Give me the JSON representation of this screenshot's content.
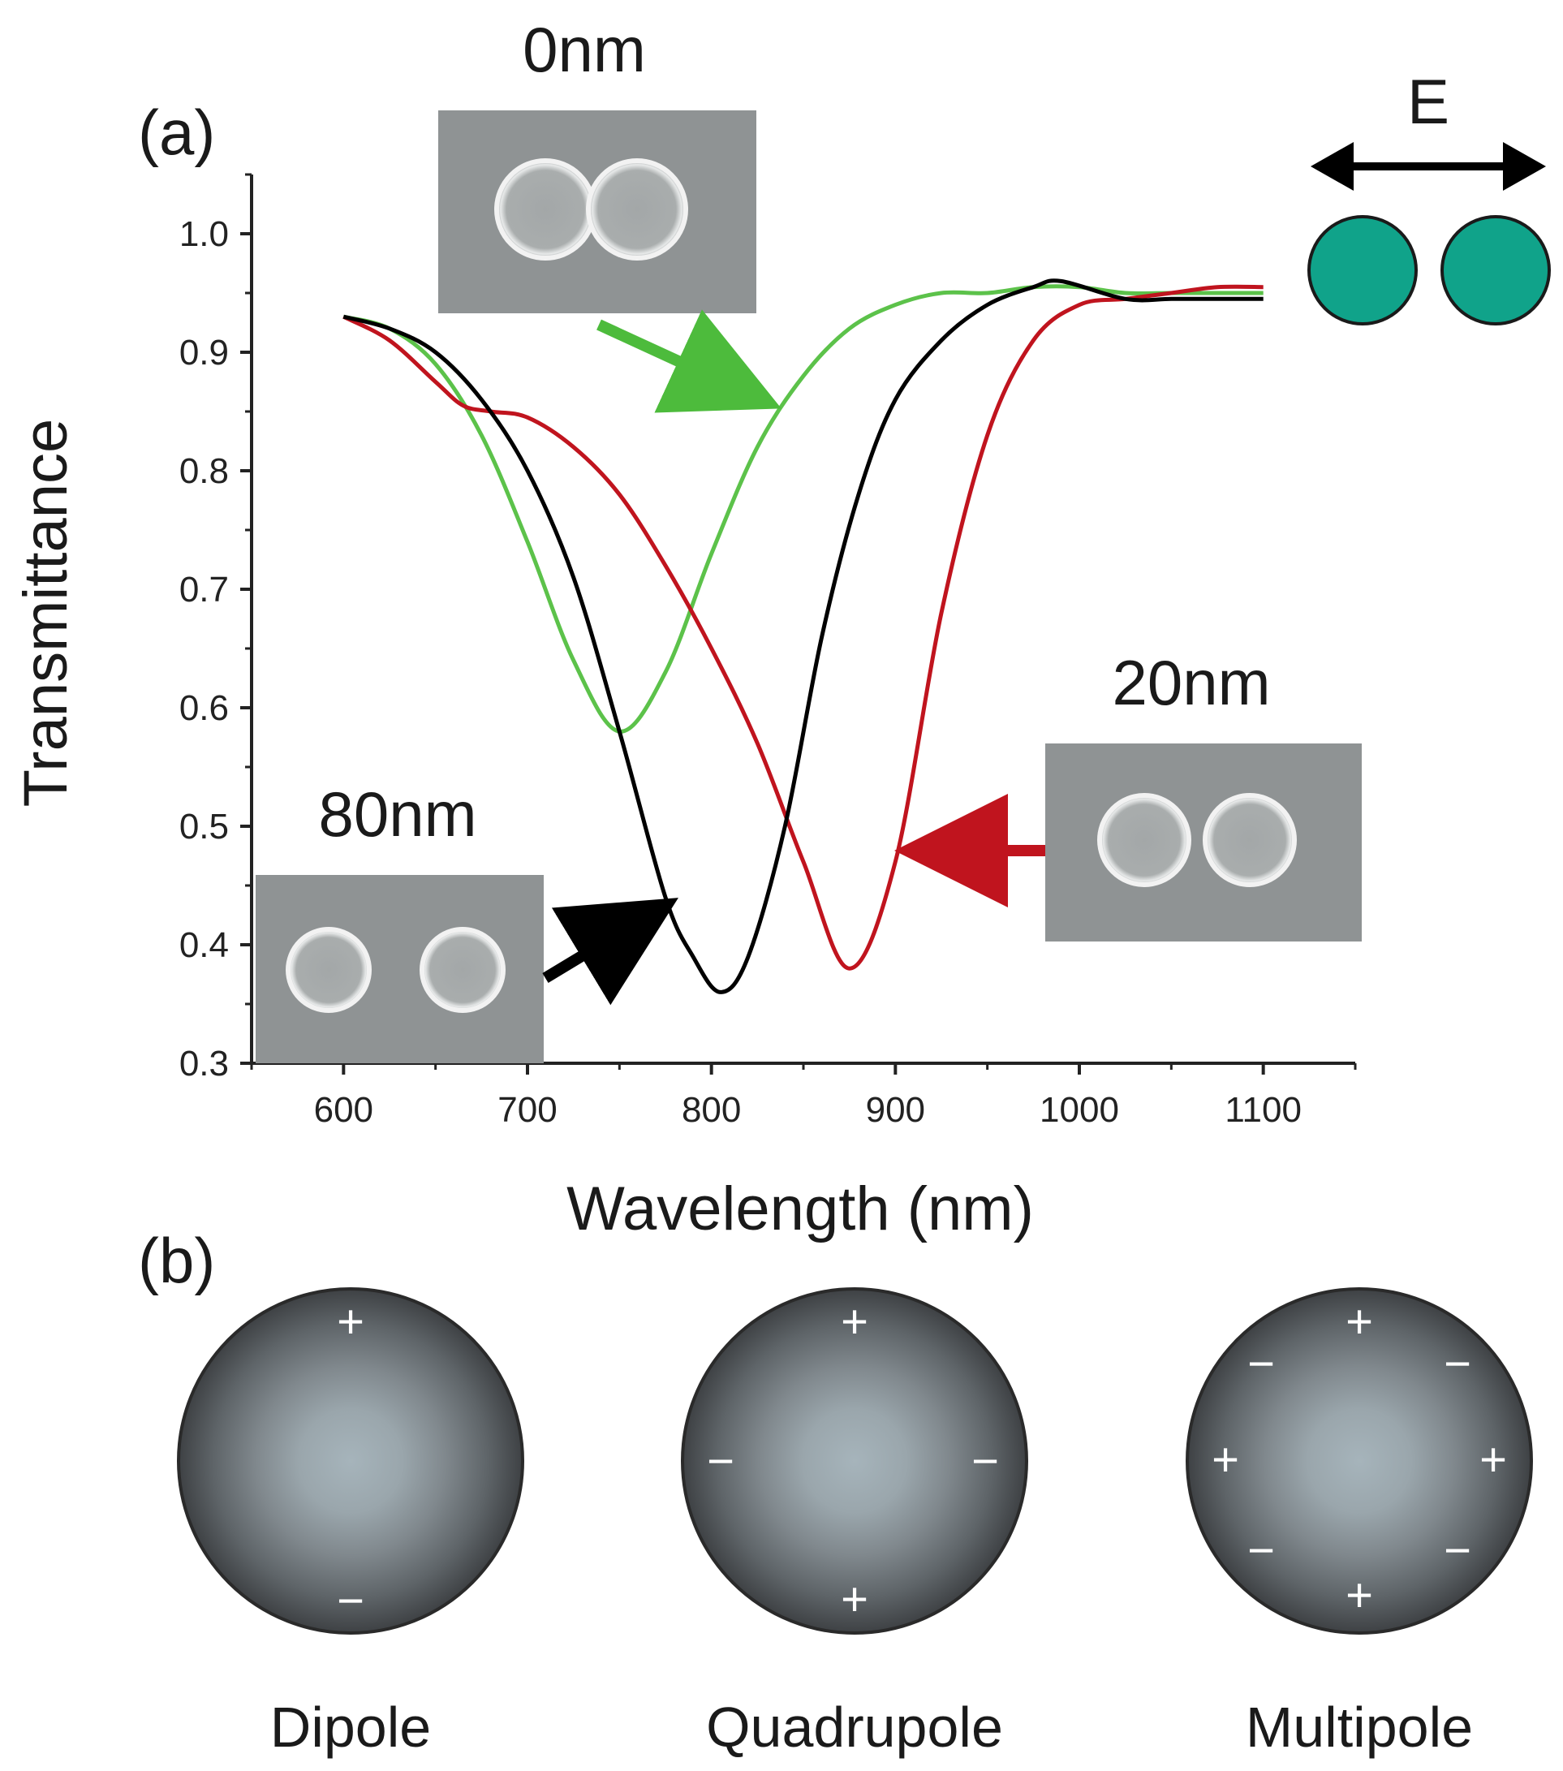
{
  "panel_a": {
    "label": "(a)"
  },
  "panel_b": {
    "label": "(b)"
  },
  "efield": {
    "label": "E",
    "particle_color": "#10a38a"
  },
  "insets": [
    {
      "id": "gap0",
      "label": "0nm",
      "arrow_color": "#4dbb3c"
    },
    {
      "id": "gap20",
      "label": "20nm",
      "arrow_color": "#c0141e"
    },
    {
      "id": "gap80",
      "label": "80nm",
      "arrow_color": "#000000"
    }
  ],
  "modes": [
    {
      "name": "Dipole",
      "charges": [
        "+",
        "−"
      ]
    },
    {
      "name": "Quadrupole",
      "charges": [
        "+",
        "−",
        "−",
        "+"
      ]
    },
    {
      "name": "Multipole",
      "charges": [
        "+",
        "−",
        "−",
        "+",
        "+",
        "−",
        "−",
        "+"
      ]
    }
  ],
  "chart_data": {
    "type": "line",
    "xlabel": "Wavelength (nm)",
    "ylabel": "Transmittance",
    "xlim": [
      550,
      1150
    ],
    "ylim": [
      0.3,
      1.05
    ],
    "xticks": [
      "600",
      "700",
      "800",
      "900",
      "1000",
      "1100"
    ],
    "yticks": [
      "0.3",
      "0.4",
      "0.5",
      "0.6",
      "0.7",
      "0.8",
      "0.9",
      "1.0"
    ],
    "grid": false,
    "series": [
      {
        "name": "0nm",
        "color": "#5cc24a",
        "x": [
          600,
          625,
          650,
          675,
          700,
          725,
          750,
          775,
          800,
          825,
          850,
          875,
          900,
          925,
          950,
          975,
          1000,
          1025,
          1050,
          1075,
          1100
        ],
        "y": [
          0.93,
          0.92,
          0.89,
          0.83,
          0.74,
          0.64,
          0.58,
          0.63,
          0.73,
          0.82,
          0.88,
          0.92,
          0.94,
          0.95,
          0.95,
          0.955,
          0.955,
          0.95,
          0.95,
          0.95,
          0.95
        ]
      },
      {
        "name": "20nm",
        "color": "#c0141e",
        "x": [
          600,
          625,
          650,
          665,
          680,
          700,
          725,
          750,
          775,
          800,
          825,
          850,
          875,
          900,
          925,
          950,
          975,
          1000,
          1025,
          1050,
          1075,
          1100
        ],
        "y": [
          0.93,
          0.91,
          0.875,
          0.855,
          0.85,
          0.845,
          0.82,
          0.78,
          0.72,
          0.65,
          0.57,
          0.47,
          0.38,
          0.47,
          0.68,
          0.83,
          0.91,
          0.94,
          0.945,
          0.95,
          0.955,
          0.955
        ]
      },
      {
        "name": "80nm",
        "color": "#000000",
        "x": [
          600,
          625,
          650,
          675,
          700,
          725,
          750,
          775,
          790,
          805,
          820,
          840,
          860,
          880,
          900,
          925,
          950,
          975,
          990,
          1025,
          1050,
          1075,
          1100
        ],
        "y": [
          0.93,
          0.92,
          0.9,
          0.86,
          0.8,
          0.71,
          0.58,
          0.44,
          0.39,
          0.36,
          0.39,
          0.5,
          0.66,
          0.78,
          0.86,
          0.91,
          0.94,
          0.955,
          0.96,
          0.945,
          0.945,
          0.945,
          0.945
        ]
      }
    ]
  }
}
